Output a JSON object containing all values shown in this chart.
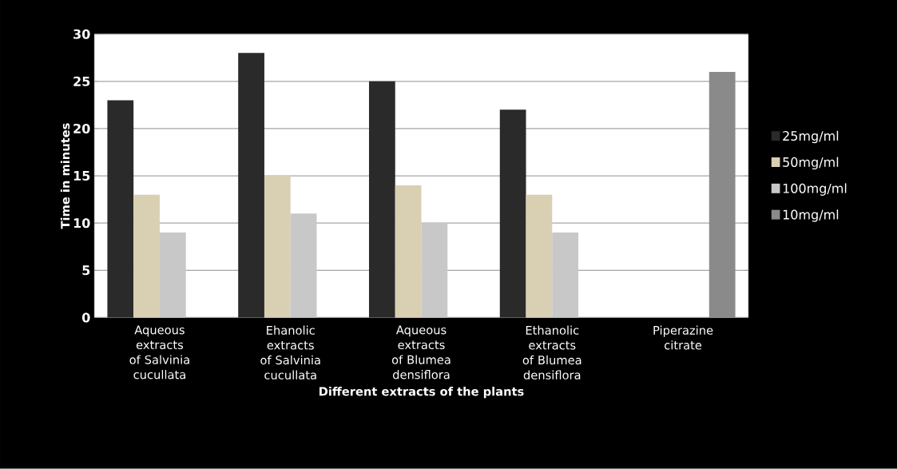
{
  "chart_data": {
    "type": "bar",
    "xlabel": "Different extracts of the plants",
    "ylabel": "Time in minutes",
    "categories": [
      "Aqueous extracts of Salvinia cucullata",
      "Ehanolic extracts of Salvinia cucullata",
      "Aqueous extracts of Blumea densiflora",
      "Ethanolic extracts of Blumea densiflora",
      "Piperazine citrate"
    ],
    "series": [
      {
        "name": "25mg/ml",
        "color": "#2a2a2a",
        "values": [
          23,
          28,
          25,
          22,
          null
        ]
      },
      {
        "name": "50mg/ml",
        "color": "#d9cfb2",
        "values": [
          13,
          15,
          14,
          13,
          null
        ]
      },
      {
        "name": "100mg/ml",
        "color": "#c8c8c8",
        "values": [
          9,
          11,
          10,
          9,
          null
        ]
      },
      {
        "name": "10mg/ml",
        "color": "#8a8a8a",
        "values": [
          null,
          null,
          null,
          null,
          26
        ]
      }
    ],
    "ylim": [
      0,
      30
    ],
    "yticks": [
      0,
      5,
      10,
      15,
      20,
      25,
      30
    ],
    "grid": "y",
    "legend": "right"
  }
}
